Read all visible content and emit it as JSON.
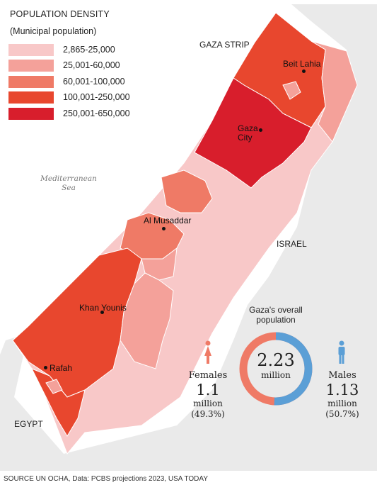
{
  "legend": {
    "title": "POPULATION DENSITY",
    "subtitle": "(Municipal population)",
    "items": [
      {
        "label": "2,865-25,000",
        "color": "#f8c8c8"
      },
      {
        "label": "25,001-60,000",
        "color": "#f4a19a"
      },
      {
        "label": "60,001-100,000",
        "color": "#ef7a66"
      },
      {
        "label": "100,001-250,000",
        "color": "#e8472e"
      },
      {
        "label": "250,001-650,000",
        "color": "#d81e2c"
      }
    ]
  },
  "map_labels": {
    "gaza_strip": "GAZA STRIP",
    "israel": "ISRAEL",
    "egypt": "EGYPT",
    "sea_line1": "Mediterranean",
    "sea_line2": "Sea"
  },
  "cities": {
    "beit_lahia": "Beit Lahia",
    "gaza_city_line1": "Gaza",
    "gaza_city_line2": "City",
    "al_musaddar": "Al Musaddar",
    "khan_younis": "Khan Younis",
    "rafah": "Rafah"
  },
  "population": {
    "title_line1": "Gaza's overall",
    "title_line2": "population",
    "total": "2.23",
    "total_unit": "million",
    "females": {
      "label": "Females",
      "value": "1.1",
      "unit": "million",
      "percent": "(49.3%)",
      "share": 0.493,
      "color": "#ef7a66",
      "icon": "female-person-icon"
    },
    "males": {
      "label": "Males",
      "value": "1.13",
      "unit": "million",
      "percent": "(50.7%)",
      "share": 0.507,
      "color": "#5b9fd6",
      "icon": "male-person-icon"
    }
  },
  "source": "SOURCE UN OCHA, Data: PCBS projections 2023, USA TODAY"
}
